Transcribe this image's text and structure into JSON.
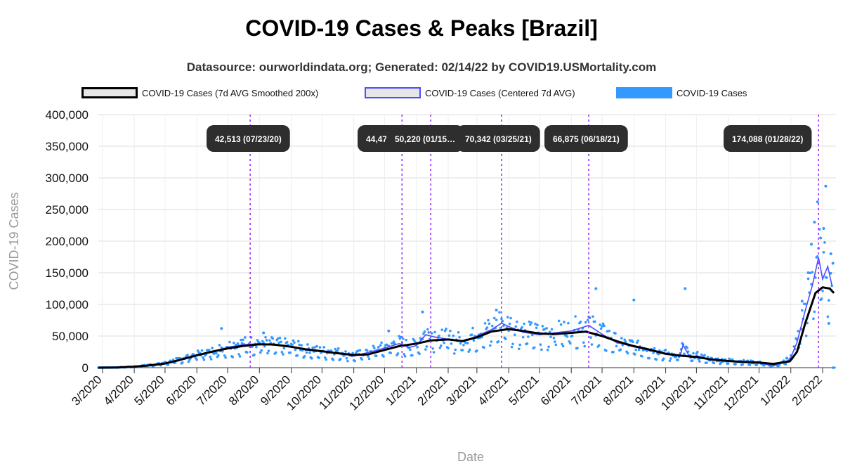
{
  "title": "COVID-19 Cases & Peaks [Brazil]",
  "subtitle": "Datasource: ourworldindata.org; Generated: 02/14/22 by COVID19.USMortality.com",
  "legend": [
    {
      "label": "COVID-19 Cases (7d AVG Smoothed 200x)",
      "color": "#000000"
    },
    {
      "label": "COVID-19 Cases (Centered 7d AVG)",
      "color": "#4d4dff"
    },
    {
      "label": "COVID-19 Cases",
      "color": "#3399ff"
    }
  ],
  "chart_data": {
    "type": "line",
    "xlabel": "Date",
    "ylabel": "COVID-19 Cases",
    "ylim": [
      0,
      400000
    ],
    "yticks": [
      0,
      50000,
      100000,
      150000,
      200000,
      250000,
      300000,
      350000,
      400000
    ],
    "ytick_labels": [
      "0",
      "50,000",
      "100,000",
      "150,000",
      "200,000",
      "250,000",
      "300,000",
      "350,000",
      "400,000"
    ],
    "xlim": [
      "2020-02-26",
      "2022-02-14"
    ],
    "xticks": [
      "2020-03-01",
      "2020-04-01",
      "2020-05-01",
      "2020-06-01",
      "2020-07-01",
      "2020-08-01",
      "2020-09-01",
      "2020-10-01",
      "2020-11-01",
      "2020-12-01",
      "2021-01-01",
      "2021-02-01",
      "2021-03-01",
      "2021-04-01",
      "2021-05-01",
      "2021-06-01",
      "2021-07-01",
      "2021-08-01",
      "2021-09-01",
      "2021-10-01",
      "2021-11-01",
      "2021-12-01",
      "2022-01-01",
      "2022-02-01"
    ],
    "xtick_labels": [
      "3/2020",
      "4/2020",
      "5/2020",
      "6/2020",
      "7/2020",
      "8/2020",
      "9/2020",
      "10/2020",
      "11/2020",
      "12/2020",
      "1/2021",
      "2/2021",
      "3/2021",
      "4/2021",
      "5/2021",
      "6/2021",
      "7/2021",
      "8/2021",
      "9/2021",
      "10/2021",
      "11/2021",
      "12/2021",
      "1/2022",
      "2/2022"
    ],
    "grid": true,
    "legend_position": "top",
    "series": [
      {
        "name": "COVID-19 Cases (7d AVG Smoothed 200x)",
        "color": "#000000",
        "points": [
          [
            "2020-02-26",
            0
          ],
          [
            "2020-03-15",
            200
          ],
          [
            "2020-04-01",
            1500
          ],
          [
            "2020-04-15",
            3500
          ],
          [
            "2020-05-01",
            6500
          ],
          [
            "2020-05-15",
            12000
          ],
          [
            "2020-06-01",
            19500
          ],
          [
            "2020-06-15",
            25000
          ],
          [
            "2020-07-01",
            30500
          ],
          [
            "2020-07-15",
            34000
          ],
          [
            "2020-08-01",
            37000
          ],
          [
            "2020-08-15",
            36500
          ],
          [
            "2020-09-01",
            33000
          ],
          [
            "2020-09-15",
            29000
          ],
          [
            "2020-10-01",
            26000
          ],
          [
            "2020-10-15",
            23000
          ],
          [
            "2020-11-01",
            20000
          ],
          [
            "2020-11-15",
            21000
          ],
          [
            "2020-12-01",
            28000
          ],
          [
            "2020-12-15",
            34000
          ],
          [
            "2021-01-01",
            38000
          ],
          [
            "2021-01-15",
            43000
          ],
          [
            "2021-02-01",
            44500
          ],
          [
            "2021-02-15",
            42000
          ],
          [
            "2021-03-01",
            48000
          ],
          [
            "2021-03-15",
            57000
          ],
          [
            "2021-04-01",
            61000
          ],
          [
            "2021-04-15",
            58000
          ],
          [
            "2021-05-01",
            54000
          ],
          [
            "2021-05-15",
            53000
          ],
          [
            "2021-06-01",
            55000
          ],
          [
            "2021-06-15",
            57000
          ],
          [
            "2021-07-01",
            50000
          ],
          [
            "2021-07-15",
            42000
          ],
          [
            "2021-08-01",
            34000
          ],
          [
            "2021-08-15",
            29000
          ],
          [
            "2021-09-01",
            22000
          ],
          [
            "2021-09-15",
            19000
          ],
          [
            "2021-10-01",
            17000
          ],
          [
            "2021-10-15",
            13000
          ],
          [
            "2021-11-01",
            10500
          ],
          [
            "2021-11-15",
            9000
          ],
          [
            "2021-12-01",
            8000
          ],
          [
            "2021-12-15",
            6000
          ],
          [
            "2021-12-31",
            10000
          ],
          [
            "2022-01-07",
            25000
          ],
          [
            "2022-01-15",
            70000
          ],
          [
            "2022-01-25",
            118000
          ],
          [
            "2022-02-01",
            127000
          ],
          [
            "2022-02-08",
            125000
          ],
          [
            "2022-02-12",
            118000
          ]
        ]
      },
      {
        "name": "COVID-19 Cases (Centered 7d AVG)",
        "color": "#4d4dff",
        "points": [
          [
            "2020-02-26",
            0
          ],
          [
            "2020-03-15",
            300
          ],
          [
            "2020-04-01",
            1600
          ],
          [
            "2020-04-15",
            3800
          ],
          [
            "2020-05-01",
            7000
          ],
          [
            "2020-05-15",
            12500
          ],
          [
            "2020-06-01",
            20500
          ],
          [
            "2020-06-15",
            24000
          ],
          [
            "2020-07-01",
            32000
          ],
          [
            "2020-07-15",
            36000
          ],
          [
            "2020-08-01",
            38000
          ],
          [
            "2020-08-15",
            35500
          ],
          [
            "2020-09-01",
            34000
          ],
          [
            "2020-09-15",
            28000
          ],
          [
            "2020-10-01",
            25000
          ],
          [
            "2020-10-15",
            24000
          ],
          [
            "2020-11-01",
            18500
          ],
          [
            "2020-11-15",
            24000
          ],
          [
            "2020-12-01",
            31000
          ],
          [
            "2020-12-15",
            38000
          ],
          [
            "2020-12-25",
            32000
          ],
          [
            "2021-01-01",
            35000
          ],
          [
            "2021-01-10",
            52000
          ],
          [
            "2021-01-20",
            48000
          ],
          [
            "2021-02-01",
            45000
          ],
          [
            "2021-02-15",
            41000
          ],
          [
            "2021-03-01",
            50000
          ],
          [
            "2021-03-15",
            60000
          ],
          [
            "2021-03-25",
            70300
          ],
          [
            "2021-04-01",
            65000
          ],
          [
            "2021-04-15",
            56000
          ],
          [
            "2021-05-01",
            52000
          ],
          [
            "2021-05-15",
            55000
          ],
          [
            "2021-06-01",
            58000
          ],
          [
            "2021-06-18",
            66800
          ],
          [
            "2021-07-01",
            53000
          ],
          [
            "2021-07-15",
            40000
          ],
          [
            "2021-08-01",
            33000
          ],
          [
            "2021-08-15",
            28000
          ],
          [
            "2021-09-01",
            21000
          ],
          [
            "2021-09-15",
            18000
          ],
          [
            "2021-09-18",
            36000
          ],
          [
            "2021-09-25",
            15000
          ],
          [
            "2021-10-01",
            19000
          ],
          [
            "2021-10-15",
            12000
          ],
          [
            "2021-11-01",
            11000
          ],
          [
            "2021-11-15",
            9000
          ],
          [
            "2021-12-01",
            7500
          ],
          [
            "2021-12-15",
            3000
          ],
          [
            "2021-12-31",
            12000
          ],
          [
            "2022-01-07",
            40000
          ],
          [
            "2022-01-15",
            90000
          ],
          [
            "2022-01-22",
            130000
          ],
          [
            "2022-01-28",
            174000
          ],
          [
            "2022-02-01",
            140000
          ],
          [
            "2022-02-06",
            160000
          ],
          [
            "2022-02-10",
            130000
          ]
        ]
      },
      {
        "name": "COVID-19 Cases",
        "color": "#3399ff",
        "note_type": "scatter",
        "points": [
          [
            "2020-06-25",
            62000
          ],
          [
            "2020-08-05",
            55000
          ],
          [
            "2020-12-05",
            58000
          ],
          [
            "2021-01-07",
            88000
          ],
          [
            "2021-03-20",
            91000
          ],
          [
            "2021-06-25",
            125000
          ],
          [
            "2021-08-01",
            107000
          ],
          [
            "2021-09-20",
            125000
          ],
          [
            "2022-01-27",
            262000
          ],
          [
            "2022-02-04",
            287000
          ],
          [
            "2022-01-24",
            230000
          ],
          [
            "2022-02-02",
            220000
          ],
          [
            "2022-01-30",
            205000
          ],
          [
            "2022-01-21",
            195000
          ],
          [
            "2022-02-09",
            180000
          ],
          [
            "2022-02-11",
            165000
          ],
          [
            "2022-01-18",
            150000
          ],
          [
            "2022-02-07",
            70000
          ],
          [
            "2022-01-12",
            105000
          ],
          [
            "2021-12-20",
            3000
          ],
          [
            "2021-12-28",
            15000
          ]
        ]
      }
    ],
    "peaks": [
      {
        "label": "42,513 (07/23/20)",
        "date": "2020-07-23"
      },
      {
        "label": "44,47…",
        "date": "2020-12-18"
      },
      {
        "label": "50,220 (01/15…",
        "date": "2021-01-15"
      },
      {
        "label": "70,342 (03/25/21)",
        "date": "2021-03-25"
      },
      {
        "label": "66,875 (06/18/21)",
        "date": "2021-06-18"
      },
      {
        "label": "174,088 (01/28/22)",
        "date": "2022-01-28"
      }
    ],
    "peak_line_color": "#9b30ff"
  }
}
